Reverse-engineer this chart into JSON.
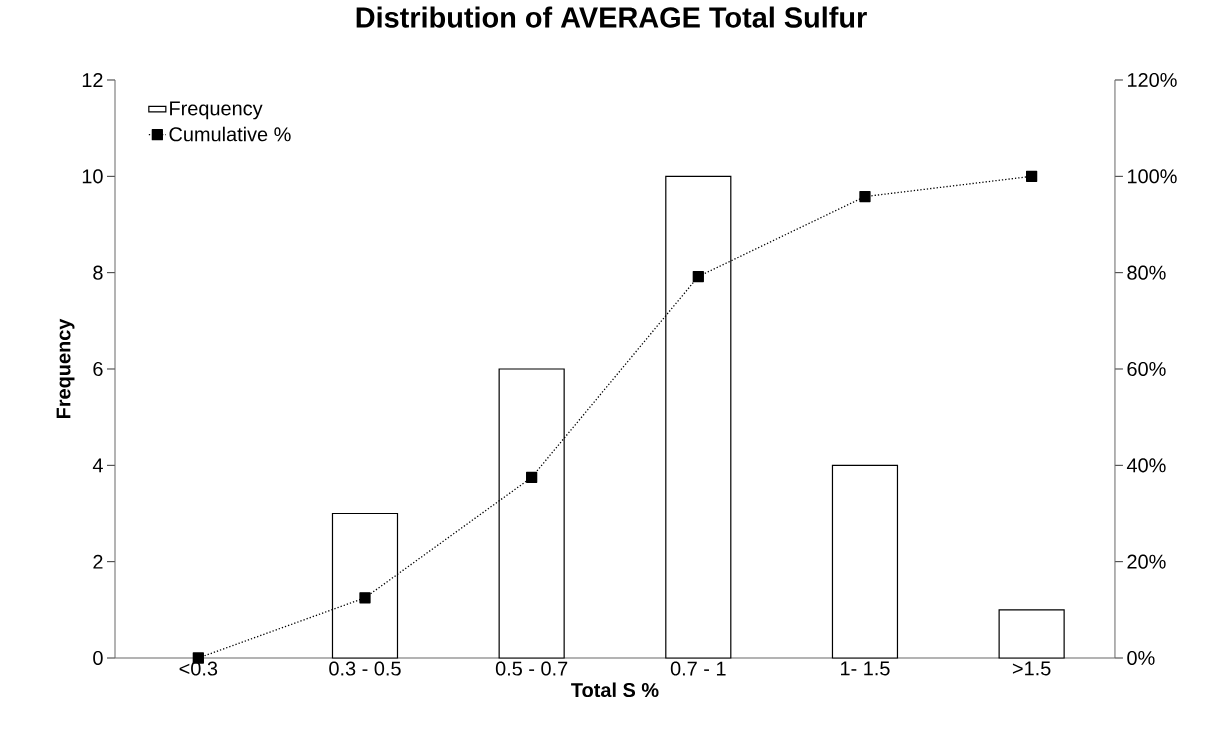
{
  "chart_data": {
    "type": "bar",
    "title": "Distribution of AVERAGE Total Sulfur",
    "xlabel": "Total S %",
    "ylabel": "Frequency",
    "categories": [
      "<0.3",
      "0.3 - 0.5",
      "0.5 - 0.7",
      "0.7 - 1",
      "1- 1.5",
      ">1.5"
    ],
    "series": [
      {
        "name": "Frequency",
        "color": "#ffffff",
        "values": [
          0,
          3,
          6,
          10,
          4,
          1
        ]
      },
      {
        "name": "Cumulative %",
        "type": "line",
        "axis": "y2",
        "color": "#000000",
        "marker": "square",
        "line_style": "dotted",
        "values": [
          0,
          12.5,
          37.5,
          79.2,
          95.8,
          100
        ]
      }
    ],
    "ylim": [
      0,
      12
    ],
    "yticks": [
      0,
      2,
      4,
      6,
      8,
      10,
      12
    ],
    "y2lim": [
      0,
      120
    ],
    "y2ticks": [
      {
        "value": 0,
        "label": "0%"
      },
      {
        "value": 20,
        "label": "20%"
      },
      {
        "value": 40,
        "label": "40%"
      },
      {
        "value": 60,
        "label": "60%"
      },
      {
        "value": 80,
        "label": "80%"
      },
      {
        "value": 100,
        "label": "100%"
      },
      {
        "value": 120,
        "label": "120%"
      }
    ],
    "grid": false,
    "legend": "top left"
  }
}
